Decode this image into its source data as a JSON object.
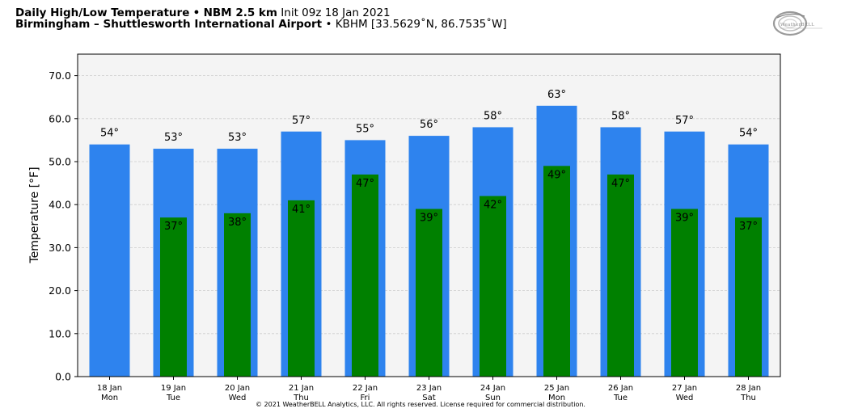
{
  "header": {
    "title_bold": "Daily High/Low Temperature",
    "bullet1": "•",
    "model_bold": "NBM 2.5 km",
    "init_text": "Init 09z 18 Jan 2021",
    "location_bold": "Birmingham – Shuttlesworth International Airport",
    "bullet2": "•",
    "station": "KBHM [33.5629˚N, 86.7535˚W]"
  },
  "logo": {
    "text": "WeatherBELL"
  },
  "footer": "© 2021 WeatherBELL Analytics, LLC. All rights reserved. License required for commercial distribution.",
  "colors": {
    "high": "#2e83ee",
    "low": "#008000",
    "plot_bg": "#f4f4f4",
    "grid": "#cccccc"
  },
  "chart_data": {
    "type": "bar",
    "title": "Daily High/Low Temperature",
    "ylabel": "Temperature [°F]",
    "xlabel": "",
    "ylim": [
      0,
      75
    ],
    "yticks": [
      0,
      10,
      20,
      30,
      40,
      50,
      60,
      70
    ],
    "ytick_labels": [
      "0.0",
      "10.0",
      "20.0",
      "30.0",
      "40.0",
      "50.0",
      "60.0",
      "70.0"
    ],
    "grid": true,
    "categories": [
      {
        "date": "18 Jan",
        "day": "Mon"
      },
      {
        "date": "19 Jan",
        "day": "Tue"
      },
      {
        "date": "20 Jan",
        "day": "Wed"
      },
      {
        "date": "21 Jan",
        "day": "Thu"
      },
      {
        "date": "22 Jan",
        "day": "Fri"
      },
      {
        "date": "23 Jan",
        "day": "Sat"
      },
      {
        "date": "24 Jan",
        "day": "Sun"
      },
      {
        "date": "25 Jan",
        "day": "Mon"
      },
      {
        "date": "26 Jan",
        "day": "Tue"
      },
      {
        "date": "27 Jan",
        "day": "Wed"
      },
      {
        "date": "28 Jan",
        "day": "Thu"
      }
    ],
    "series": [
      {
        "key": "high",
        "values": [
          54,
          53,
          53,
          57,
          55,
          56,
          58,
          63,
          58,
          57,
          54
        ],
        "labels": [
          "54°",
          "53°",
          "53°",
          "57°",
          "55°",
          "56°",
          "58°",
          "63°",
          "58°",
          "57°",
          "54°"
        ]
      },
      {
        "key": "low",
        "values": [
          null,
          37,
          38,
          41,
          47,
          39,
          42,
          49,
          47,
          39,
          37
        ],
        "labels": [
          null,
          "37°",
          "38°",
          "41°",
          "47°",
          "39°",
          "42°",
          "49°",
          "47°",
          "39°",
          "37°"
        ]
      }
    ]
  }
}
